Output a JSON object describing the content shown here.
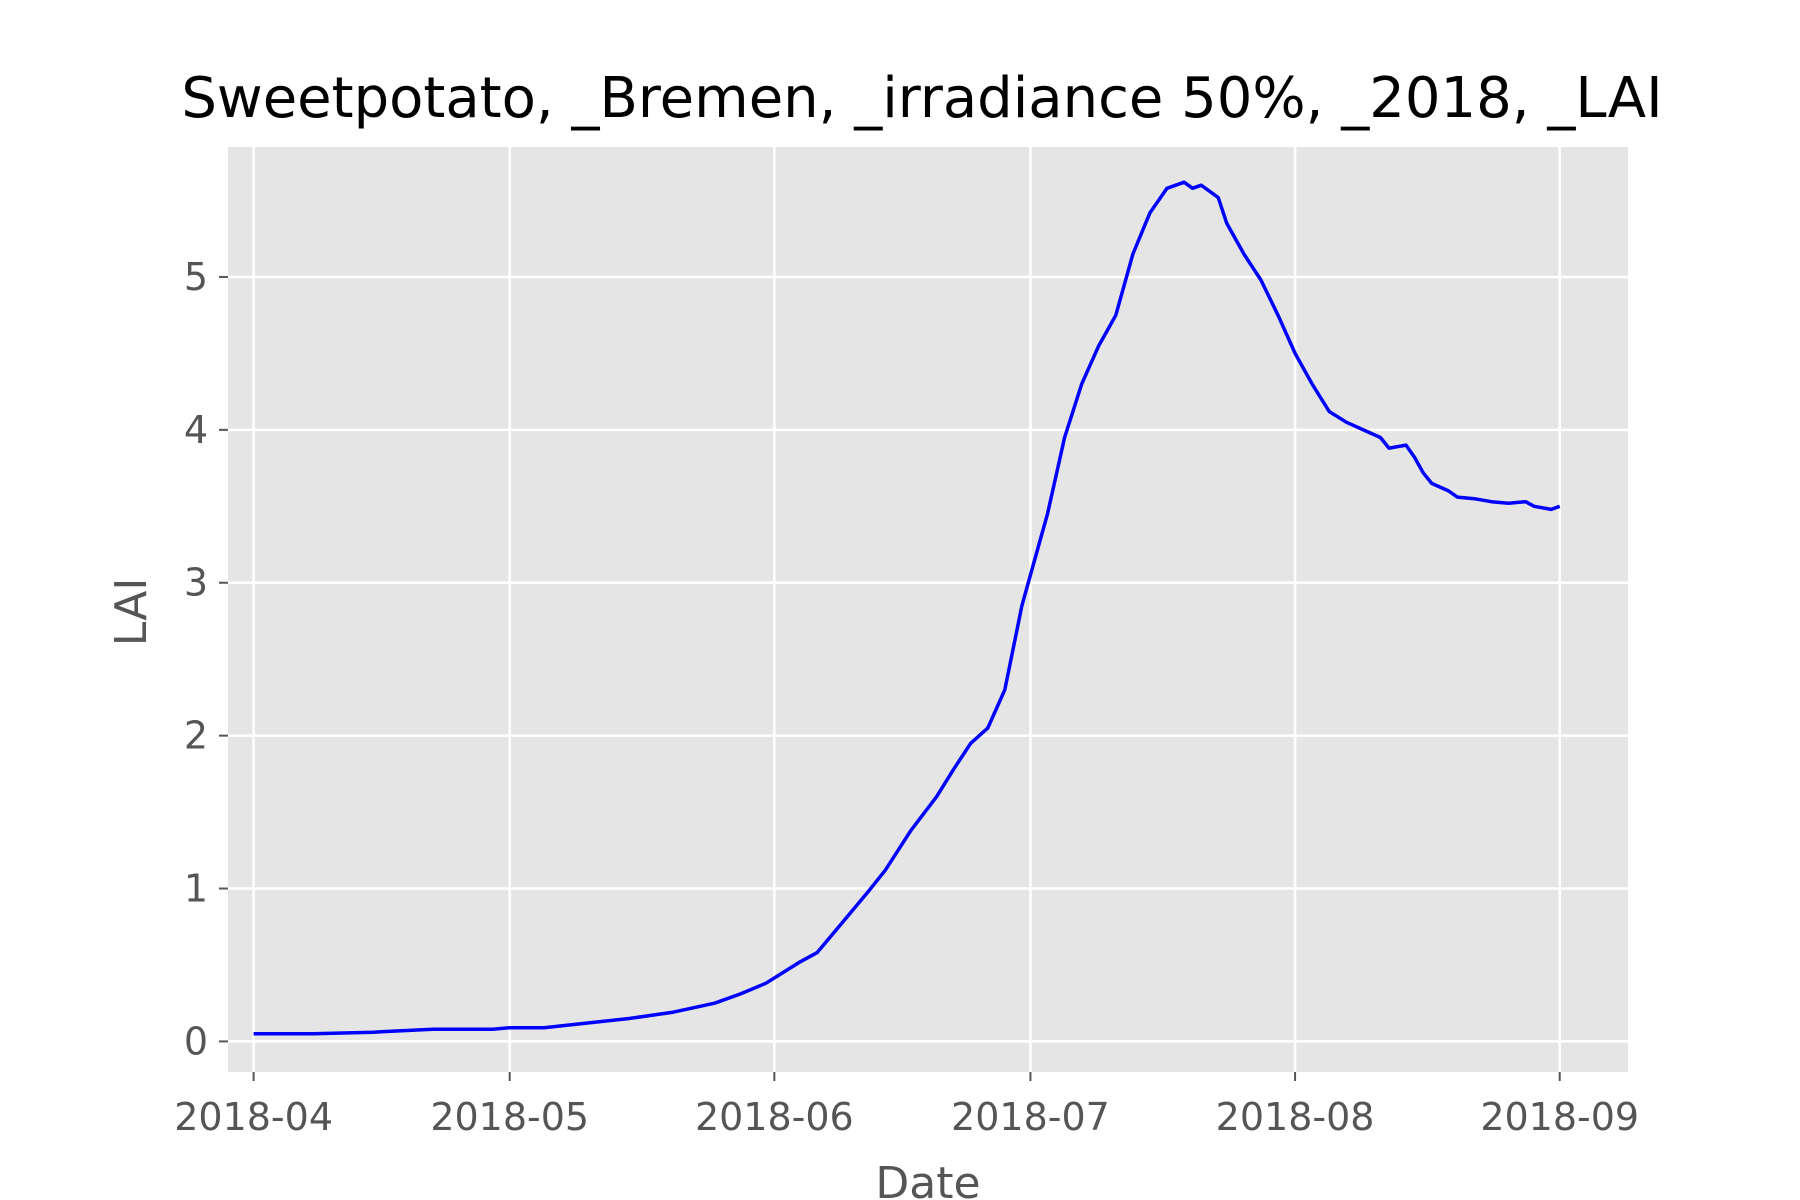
{
  "chart_data": {
    "type": "line",
    "title": "Sweetpotato, _Bremen, _irradiance 50%, _2018, _LAI",
    "xlabel": "Date",
    "ylabel": "LAI",
    "x_type": "date",
    "xlim": [
      "2018-03-29",
      "2018-09-09"
    ],
    "ylim": [
      -0.2,
      5.85
    ],
    "x_ticks": [
      "2018-04-01",
      "2018-05-01",
      "2018-06-01",
      "2018-07-01",
      "2018-08-01",
      "2018-09-01"
    ],
    "x_tick_labels": [
      "2018-04",
      "2018-05",
      "2018-06",
      "2018-07",
      "2018-08",
      "2018-09"
    ],
    "y_ticks": [
      0,
      1,
      2,
      3,
      4,
      5
    ],
    "y_tick_labels": [
      "0",
      "1",
      "2",
      "3",
      "4",
      "5"
    ],
    "grid": true,
    "background": "#e5e5e5",
    "grid_color": "#ffffff",
    "series": [
      {
        "color": "#0000ff",
        "x": [
          "2018-04-01",
          "2018-04-08",
          "2018-04-15",
          "2018-04-22",
          "2018-04-25",
          "2018-04-29",
          "2018-05-01",
          "2018-05-05",
          "2018-05-10",
          "2018-05-15",
          "2018-05-20",
          "2018-05-25",
          "2018-05-28",
          "2018-05-31",
          "2018-06-02",
          "2018-06-04",
          "2018-06-06",
          "2018-06-09",
          "2018-06-12",
          "2018-06-14",
          "2018-06-17",
          "2018-06-20",
          "2018-06-22",
          "2018-06-24",
          "2018-06-26",
          "2018-06-28",
          "2018-06-30",
          "2018-07-01",
          "2018-07-03",
          "2018-07-05",
          "2018-07-07",
          "2018-07-09",
          "2018-07-10",
          "2018-07-11",
          "2018-07-13",
          "2018-07-15",
          "2018-07-17",
          "2018-07-19",
          "2018-07-20",
          "2018-07-21",
          "2018-07-23",
          "2018-07-24",
          "2018-07-26",
          "2018-07-28",
          "2018-07-30",
          "2018-08-01",
          "2018-08-03",
          "2018-08-05",
          "2018-08-07",
          "2018-08-09",
          "2018-08-11",
          "2018-08-12",
          "2018-08-14",
          "2018-08-15",
          "2018-08-16",
          "2018-08-17",
          "2018-08-19",
          "2018-08-20",
          "2018-08-22",
          "2018-08-24",
          "2018-08-26",
          "2018-08-28",
          "2018-08-29",
          "2018-08-31",
          "2018-09-01"
        ],
        "y": [
          0.05,
          0.05,
          0.06,
          0.08,
          0.08,
          0.08,
          0.09,
          0.09,
          0.12,
          0.15,
          0.19,
          0.25,
          0.31,
          0.38,
          0.45,
          0.52,
          0.58,
          0.78,
          0.98,
          1.12,
          1.38,
          1.6,
          1.78,
          1.95,
          2.05,
          2.3,
          2.85,
          3.05,
          3.45,
          3.95,
          4.3,
          4.55,
          4.65,
          4.75,
          5.15,
          5.42,
          5.58,
          5.62,
          5.58,
          5.6,
          5.52,
          5.35,
          5.15,
          4.98,
          4.75,
          4.5,
          4.3,
          4.12,
          4.05,
          4.0,
          3.95,
          3.88,
          3.9,
          3.82,
          3.72,
          3.65,
          3.6,
          3.56,
          3.55,
          3.53,
          3.52,
          3.53,
          3.5,
          3.48,
          3.5
        ]
      }
    ]
  }
}
